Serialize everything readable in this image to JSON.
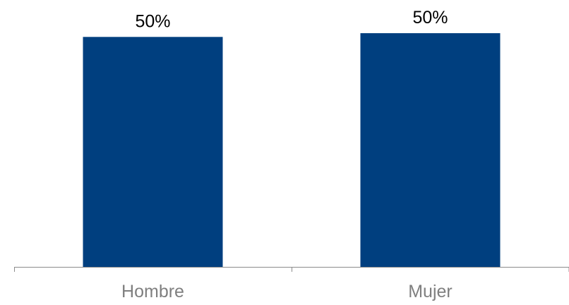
{
  "chart_data": {
    "type": "bar",
    "categories": [
      "Hombre",
      "Mujer"
    ],
    "values": [
      49.6,
      50.4
    ],
    "data_labels": [
      "50%",
      "50%"
    ],
    "ylim": [
      0,
      50.4
    ],
    "grid": false,
    "legend": "none",
    "colors": {
      "bar": "#003F7F",
      "axis": "#8c8c8c",
      "category_text": "#7f7f7f",
      "label_text": "#000000"
    }
  }
}
